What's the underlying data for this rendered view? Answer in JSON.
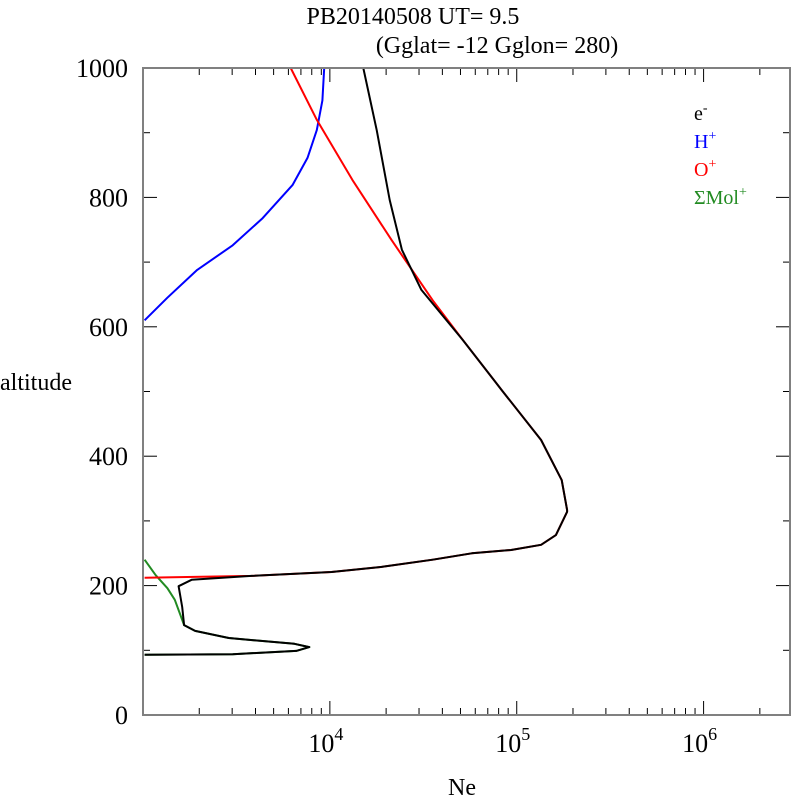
{
  "chart_data": {
    "type": "line",
    "title": "PB20140508   UT=  9.5",
    "subtitle": "(Gglat= -12   Gglon=  280)",
    "xlabel": "Ne",
    "ylabel": "altitude",
    "xscale": "log",
    "xlim": [
      1000,
      2900000
    ],
    "ylim": [
      0,
      1000
    ],
    "xticks": [
      {
        "value": 10000,
        "base": "10",
        "exp": "4"
      },
      {
        "value": 100000,
        "base": "10",
        "exp": "5"
      },
      {
        "value": 1000000,
        "base": "10",
        "exp": "6"
      }
    ],
    "yticks": [
      0,
      200,
      400,
      600,
      800,
      1000
    ],
    "ytick_labels": [
      "0",
      "200",
      "400",
      "600",
      "800",
      "1000"
    ],
    "legend_position": "top-right",
    "series": [
      {
        "name": "e-",
        "label_base": "e",
        "label_sup": "-",
        "color": "#000000",
        "points": [
          [
            15100,
            1000
          ],
          [
            17800,
            904
          ],
          [
            20900,
            796
          ],
          [
            24300,
            719
          ],
          [
            30900,
            657
          ],
          [
            51300,
            580
          ],
          [
            83200,
            502
          ],
          [
            135000,
            425
          ],
          [
            174000,
            363
          ],
          [
            186000,
            317
          ],
          [
            186000,
            314
          ],
          [
            162000,
            278
          ],
          [
            135000,
            263
          ],
          [
            93300,
            255
          ],
          [
            57500,
            250
          ],
          [
            35500,
            240
          ],
          [
            19100,
            229
          ],
          [
            10200,
            221
          ],
          [
            3800,
            215
          ],
          [
            1820,
            209
          ],
          [
            1550,
            199
          ],
          [
            1620,
            167
          ],
          [
            1660,
            139
          ],
          [
            1900,
            130
          ],
          [
            2880,
            119
          ],
          [
            6460,
            110
          ],
          [
            7760,
            105
          ],
          [
            6610,
            99
          ],
          [
            3020,
            94
          ],
          [
            1020,
            93
          ]
        ]
      },
      {
        "name": "H+",
        "label_base": "H",
        "label_sup": "+",
        "color": "#0000ff",
        "points": [
          [
            9330,
            1000
          ],
          [
            9120,
            950
          ],
          [
            8510,
            904
          ],
          [
            7590,
            861
          ],
          [
            6310,
            819
          ],
          [
            4370,
            768
          ],
          [
            3020,
            726
          ],
          [
            1950,
            688
          ],
          [
            1350,
            645
          ],
          [
            1020,
            610
          ]
        ]
      },
      {
        "name": "O+",
        "label_base": "O",
        "label_sup": "+",
        "color": "#ff0000",
        "points": [
          [
            6170,
            1000
          ],
          [
            8510,
            920
          ],
          [
            13200,
            827
          ],
          [
            21400,
            734
          ],
          [
            35500,
            641
          ],
          [
            51300,
            580
          ],
          [
            83200,
            502
          ],
          [
            135000,
            425
          ],
          [
            174000,
            363
          ],
          [
            186000,
            317
          ],
          [
            186000,
            314
          ],
          [
            162000,
            278
          ],
          [
            135000,
            263
          ],
          [
            93300,
            255
          ],
          [
            57500,
            250
          ],
          [
            35500,
            240
          ],
          [
            19100,
            229
          ],
          [
            10200,
            221
          ],
          [
            3800,
            215
          ],
          [
            1020,
            212
          ]
        ]
      },
      {
        "name": "ΣMol+",
        "label_base": "ΣMol",
        "label_sup": "+",
        "color": "#228b22",
        "points": [
          [
            1020,
            240
          ],
          [
            1170,
            216
          ],
          [
            1350,
            196
          ],
          [
            1480,
            178
          ],
          [
            1620,
            147
          ],
          [
            1660,
            139
          ],
          [
            1900,
            130
          ],
          [
            2880,
            119
          ],
          [
            6460,
            110
          ],
          [
            7760,
            105
          ],
          [
            6610,
            99
          ],
          [
            3020,
            94
          ],
          [
            1020,
            93
          ]
        ]
      }
    ]
  }
}
